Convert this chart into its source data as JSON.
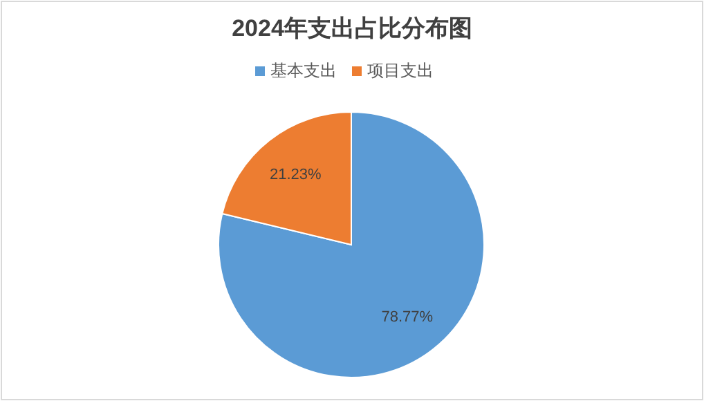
{
  "chart_data": {
    "type": "pie",
    "title": "2024年支出占比分布图",
    "categories": [
      "基本支出",
      "项目支出"
    ],
    "values": [
      78.77,
      21.23
    ],
    "colors": [
      "#5b9bd5",
      "#ed7d31"
    ],
    "value_labels": [
      "78.77%",
      "21.23%"
    ],
    "legend": "top"
  }
}
